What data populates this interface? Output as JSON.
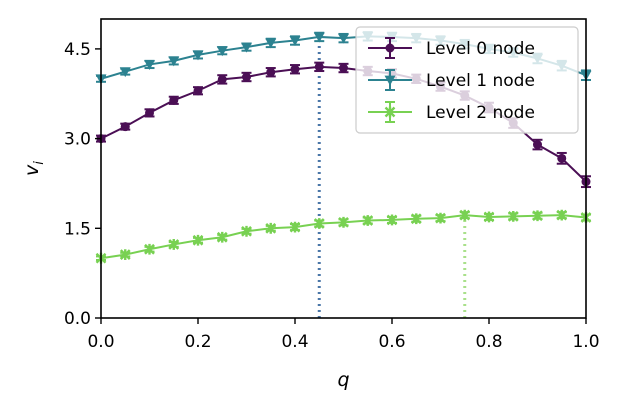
{
  "chart_data": {
    "type": "line",
    "xlabel": "q",
    "ylabel": "v",
    "ylabel_subscript": "i",
    "xlim": [
      0.0,
      1.0
    ],
    "ylim": [
      0.0,
      5.0
    ],
    "xticks": [
      "0.0",
      "0.2",
      "0.4",
      "0.6",
      "0.8",
      "1.0"
    ],
    "yticks": [
      "0.0",
      "1.5",
      "3.0",
      "4.5"
    ],
    "x": [
      0.0,
      0.05,
      0.1,
      0.15,
      0.2,
      0.25,
      0.3,
      0.35,
      0.4,
      0.45,
      0.5,
      0.55,
      0.6,
      0.65,
      0.7,
      0.75,
      0.8,
      0.85,
      0.9,
      0.95,
      1.0
    ],
    "legend_position": "top-right",
    "series": [
      {
        "name": "Level 0 node",
        "color": "#4b0f55",
        "marker": "circle",
        "values": [
          3.0,
          3.2,
          3.43,
          3.64,
          3.8,
          3.99,
          4.03,
          4.11,
          4.16,
          4.2,
          4.18,
          4.13,
          4.09,
          4.0,
          3.87,
          3.72,
          3.52,
          3.26,
          2.9,
          2.67,
          2.28
        ],
        "errors": [
          0.05,
          0.05,
          0.06,
          0.06,
          0.06,
          0.07,
          0.07,
          0.07,
          0.07,
          0.07,
          0.07,
          0.07,
          0.07,
          0.07,
          0.07,
          0.07,
          0.08,
          0.08,
          0.08,
          0.09,
          0.09
        ]
      },
      {
        "name": "Level 1 node",
        "color": "#2c8290",
        "marker": "triangle-down",
        "values": [
          4.0,
          4.12,
          4.24,
          4.3,
          4.4,
          4.47,
          4.53,
          4.6,
          4.64,
          4.7,
          4.68,
          4.71,
          4.7,
          4.68,
          4.64,
          4.58,
          4.5,
          4.44,
          4.34,
          4.22,
          4.06
        ],
        "errors": [
          0.05,
          0.05,
          0.06,
          0.06,
          0.06,
          0.06,
          0.06,
          0.07,
          0.07,
          0.07,
          0.07,
          0.07,
          0.07,
          0.07,
          0.07,
          0.07,
          0.07,
          0.07,
          0.08,
          0.08,
          0.08
        ]
      },
      {
        "name": "Level 2 node",
        "color": "#78d152",
        "marker": "x",
        "values": [
          1.0,
          1.06,
          1.15,
          1.23,
          1.3,
          1.35,
          1.45,
          1.5,
          1.52,
          1.58,
          1.6,
          1.63,
          1.64,
          1.66,
          1.67,
          1.72,
          1.69,
          1.7,
          1.71,
          1.72,
          1.68
        ],
        "errors": [
          0.03,
          0.03,
          0.04,
          0.04,
          0.04,
          0.04,
          0.04,
          0.04,
          0.05,
          0.05,
          0.05,
          0.05,
          0.05,
          0.05,
          0.05,
          0.05,
          0.05,
          0.05,
          0.05,
          0.05,
          0.05
        ]
      }
    ],
    "vlines": [
      {
        "x": 0.45,
        "color": "#4a77a8",
        "style": "dotted",
        "series": "Level 1 node"
      },
      {
        "x": 0.75,
        "color": "#a9e08a",
        "style": "dotted",
        "series": "Level 2 node"
      }
    ]
  }
}
